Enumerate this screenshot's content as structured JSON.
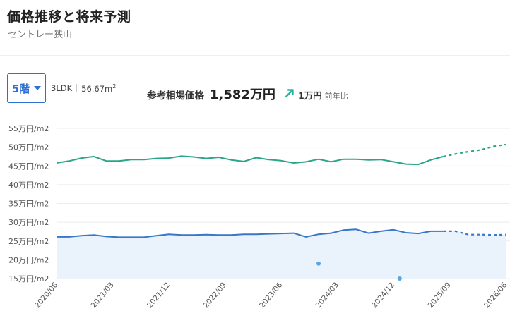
{
  "header": {
    "title": "価格推移と将来予測",
    "subtitle": "セントレー狭山"
  },
  "controls": {
    "floor_select": "5階",
    "layout": "3LDK",
    "area": "56.67m",
    "area_sup": "2"
  },
  "price": {
    "label": "参考相場価格",
    "value": "1,582万円",
    "change": "1万円",
    "change_label": "前年比",
    "trend_icon": "arrow-up-right-icon",
    "trend_color": "#2bb3a0"
  },
  "chart_data": {
    "type": "line",
    "y_tick_labels": [
      "55万円/m2",
      "50万円/m2",
      "45万円/m2",
      "40万円/m2",
      "35万円/m2",
      "30万円/m2",
      "25万円/m2",
      "20万円/m2",
      "15万円/m2"
    ],
    "y_tick_values": [
      55,
      50,
      45,
      40,
      35,
      30,
      25,
      20,
      15
    ],
    "ylim": [
      15,
      55
    ],
    "x_tick_labels": [
      "2020/06",
      "2021/03",
      "2021/12",
      "2022/09",
      "2023/06",
      "2024/03",
      "2024/12",
      "2025/09",
      "2026/06"
    ],
    "xlim": [
      "2020/06",
      "2026/06"
    ],
    "series": [
      {
        "color": "#2aa58a",
        "x": [
          "2020/06",
          "2020/08",
          "2020/10",
          "2020/12",
          "2021/02",
          "2021/04",
          "2021/06",
          "2021/08",
          "2021/10",
          "2021/12",
          "2022/02",
          "2022/04",
          "2022/06",
          "2022/08",
          "2022/10",
          "2022/12",
          "2023/02",
          "2023/04",
          "2023/06",
          "2023/08",
          "2023/10",
          "2023/12",
          "2024/02",
          "2024/04",
          "2024/06",
          "2024/08",
          "2024/10",
          "2024/12",
          "2025/02",
          "2025/04",
          "2025/06",
          "2025/08"
        ],
        "values": [
          45.8,
          46.3,
          47.1,
          47.5,
          46.3,
          46.3,
          46.7,
          46.7,
          47.0,
          47.1,
          47.6,
          47.4,
          47.0,
          47.3,
          46.6,
          46.2,
          47.2,
          46.7,
          46.4,
          45.8,
          46.1,
          46.8,
          46.1,
          46.8,
          46.8,
          46.6,
          46.7,
          46.1,
          45.5,
          45.4,
          46.6,
          47.5
        ]
      },
      {
        "color": "#2aa58a",
        "style": "forecast",
        "x": [
          "2025/08",
          "2025/10",
          "2025/12",
          "2026/02",
          "2026/04",
          "2026/06"
        ],
        "values": [
          47.5,
          48.2,
          48.8,
          49.3,
          50.2,
          50.7
        ]
      },
      {
        "color": "#3677c9",
        "x": [
          "2020/06",
          "2020/08",
          "2020/10",
          "2020/12",
          "2021/02",
          "2021/04",
          "2021/06",
          "2021/08",
          "2021/10",
          "2021/12",
          "2022/02",
          "2022/04",
          "2022/06",
          "2022/08",
          "2022/10",
          "2022/12",
          "2023/02",
          "2023/04",
          "2023/06",
          "2023/08",
          "2023/10",
          "2023/12",
          "2024/02",
          "2024/04",
          "2024/06",
          "2024/08",
          "2024/10",
          "2024/12",
          "2025/02",
          "2025/04",
          "2025/06",
          "2025/08"
        ],
        "values": [
          26.1,
          26.1,
          26.4,
          26.6,
          26.2,
          26.0,
          26.0,
          26.0,
          26.4,
          26.8,
          26.6,
          26.6,
          26.7,
          26.6,
          26.6,
          26.8,
          26.8,
          26.9,
          27.0,
          27.1,
          26.1,
          26.8,
          27.1,
          27.9,
          28.1,
          27.1,
          27.6,
          28.0,
          27.2,
          27.0,
          27.6,
          27.6
        ]
      },
      {
        "color": "#3677c9",
        "style": "forecast",
        "x": [
          "2025/08",
          "2025/10",
          "2025/12",
          "2026/02",
          "2026/04",
          "2026/06"
        ],
        "values": [
          27.6,
          27.6,
          26.7,
          26.7,
          26.6,
          26.7
        ]
      }
    ],
    "scatter": {
      "color": "#5aa6e0",
      "x": [
        "2023/12",
        "2025/01"
      ],
      "values": [
        19.0,
        15.0
      ]
    },
    "area_fill": "#eaf2fc",
    "grid": true
  }
}
